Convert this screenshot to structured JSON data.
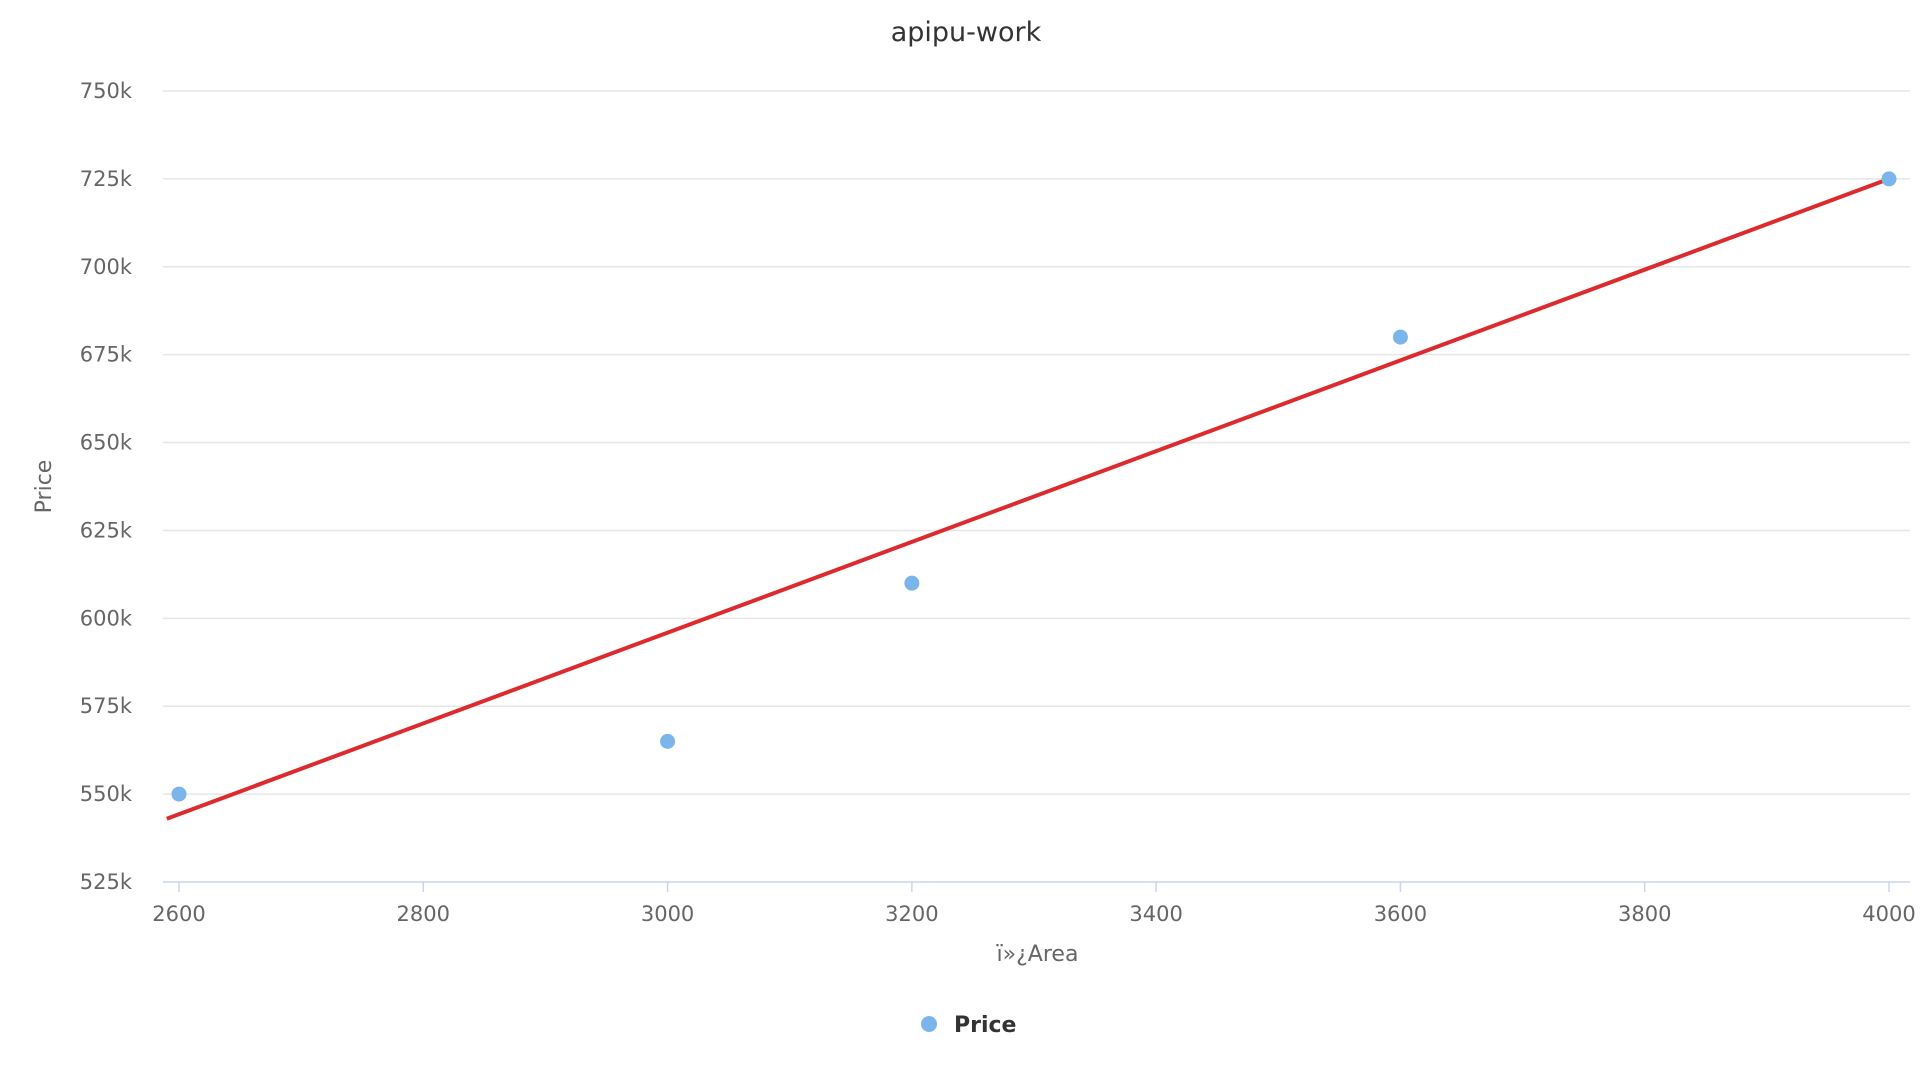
{
  "chart_data": {
    "type": "scatter",
    "title": "apipu-work",
    "xlabel": "ï»¿Area",
    "ylabel": "Price",
    "xlim": [
      2600,
      4000
    ],
    "ylim": [
      525000,
      750000
    ],
    "x_ticks": [
      "2600",
      "2800",
      "3000",
      "3200",
      "3400",
      "3600",
      "3800",
      "4000"
    ],
    "y_ticks": [
      "525k",
      "550k",
      "575k",
      "600k",
      "625k",
      "650k",
      "675k",
      "700k",
      "725k",
      "750k"
    ],
    "grid": true,
    "legend_position": "bottom-center",
    "series": [
      {
        "name": "Price",
        "type": "scatter",
        "color": "#7cb5ec",
        "points": [
          {
            "x": 2600,
            "y": 550000
          },
          {
            "x": 3000,
            "y": 565000
          },
          {
            "x": 3200,
            "y": 610000
          },
          {
            "x": 3600,
            "y": 680000
          },
          {
            "x": 4000,
            "y": 725000
          }
        ]
      },
      {
        "type": "line",
        "color": "#dd2a2e",
        "points": [
          {
            "x": 2590,
            "y": 543000
          },
          {
            "x": 4000,
            "y": 725000
          }
        ]
      }
    ],
    "legend": [
      {
        "label": "Price",
        "color": "#7cb5ec"
      }
    ]
  }
}
